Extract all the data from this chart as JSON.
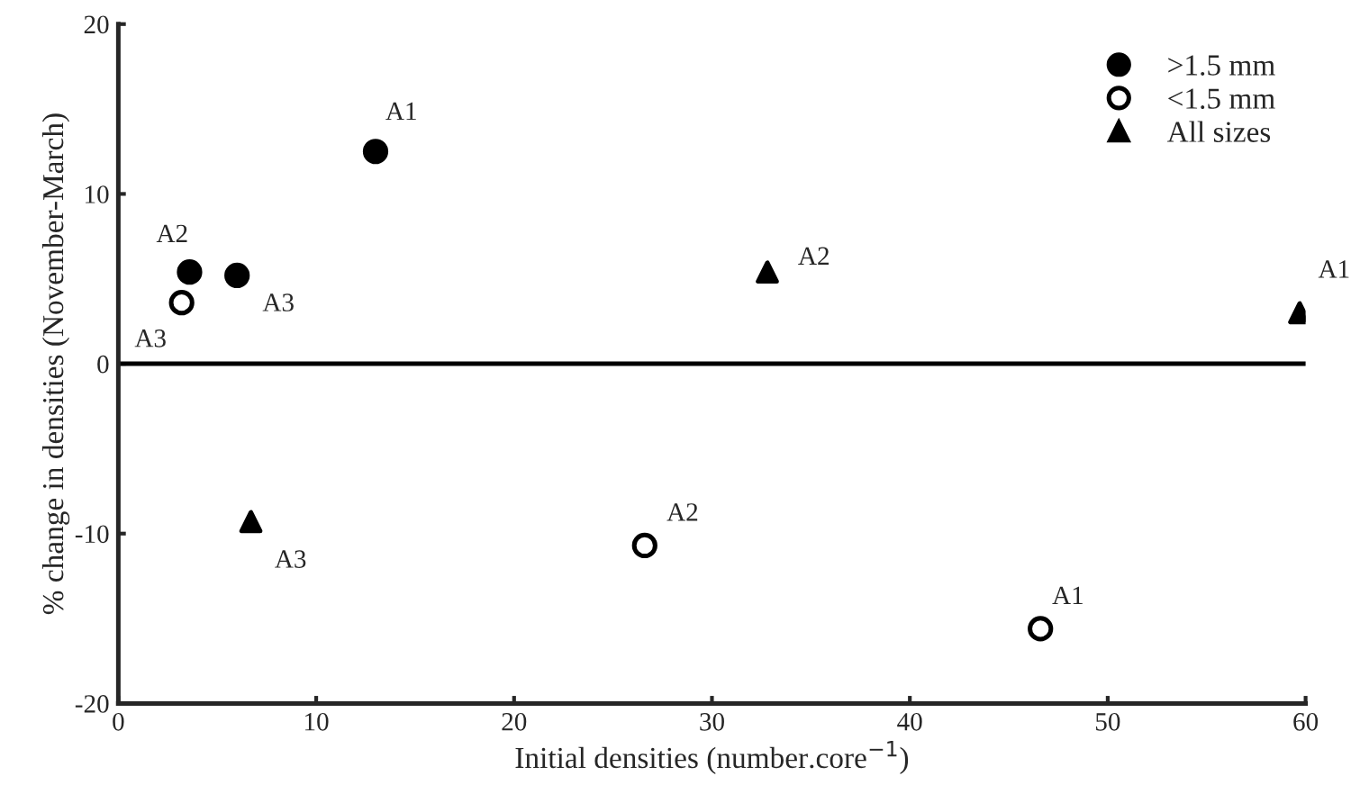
{
  "chart_data": {
    "type": "scatter",
    "xlabel": "Initial densities (number.core$^{−1}$)",
    "ylabel": "% change in densities (November-March)",
    "xlim": [
      0,
      60
    ],
    "xticks": [
      0,
      10,
      20,
      30,
      40,
      50,
      60
    ],
    "ylim": [
      -20,
      20
    ],
    "yticks": [
      -20,
      -10,
      0,
      10,
      20
    ],
    "grid": false,
    "legend": "top right",
    "ref_lines": [
      {
        "axis": "y",
        "value": 0,
        "color": "#000000",
        "line_style": "solid"
      }
    ],
    "series": [
      {
        "name": ">1.5 mm",
        "color": "#000000",
        "marker": "circle",
        "x": [
          13.0,
          3.6,
          6.0
        ],
        "values": [
          12.5,
          5.4,
          5.2
        ]
      },
      {
        "name": "<1.5 mm",
        "color": "#ffffff",
        "marker": "circle",
        "x": [
          46.6,
          26.6,
          3.2
        ],
        "values": [
          -15.6,
          -10.7,
          3.6
        ]
      },
      {
        "name": "All sizes",
        "color": "#000000",
        "marker": "triangle",
        "x": [
          59.7,
          32.8,
          6.7
        ],
        "values": [
          3.0,
          5.4,
          -9.3
        ]
      }
    ],
    "annotations": [
      {
        "text": "A1",
        "x": 13.0,
        "y": 12.5
      },
      {
        "text": "A2",
        "x": 3.6,
        "y": 5.4
      },
      {
        "text": "A3",
        "x": 6.0,
        "y": 5.2
      },
      {
        "text": "A1",
        "x": 46.6,
        "y": -15.6
      },
      {
        "text": "A2",
        "x": 26.6,
        "y": -10.7
      },
      {
        "text": "A3",
        "x": 3.2,
        "y": 3.6
      },
      {
        "text": "A1",
        "x": 59.7,
        "y": 3.0
      },
      {
        "text": "A2",
        "x": 32.8,
        "y": 5.4
      },
      {
        "text": "A3",
        "x": 6.7,
        "y": -9.3
      }
    ]
  }
}
